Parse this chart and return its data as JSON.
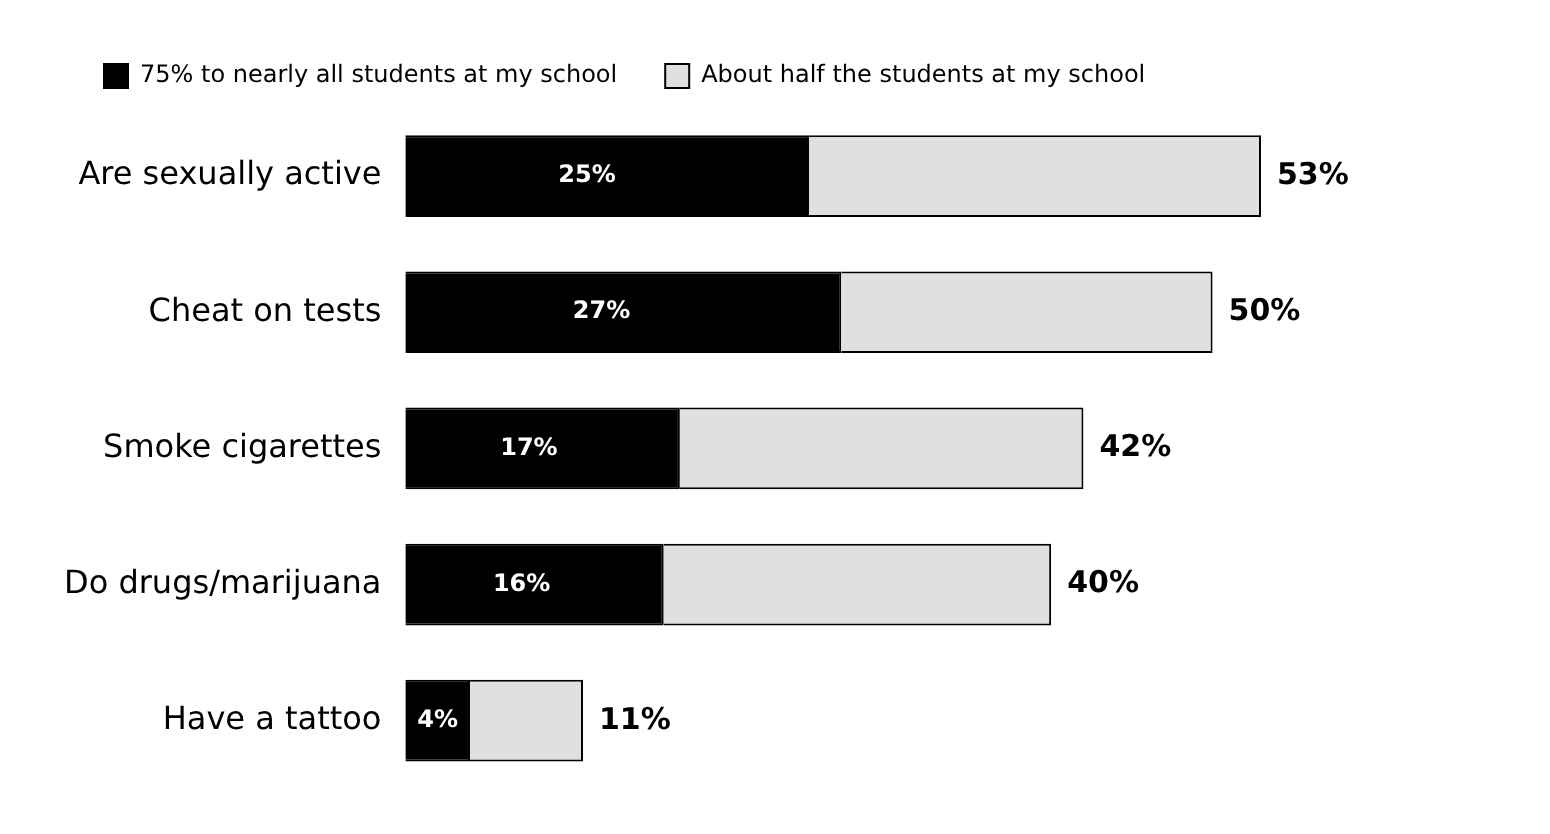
{
  "chart_data": {
    "type": "bar",
    "orientation": "horizontal",
    "stacked": true,
    "legend": "top left",
    "categories": [
      "Are sexually active",
      "Cheat on tests",
      "Smoke cigarettes",
      "Do drugs/marijuana",
      "Have a tattoo"
    ],
    "series": [
      {
        "name": "75% to nearly all students at my school",
        "color": "#000000",
        "values": [
          25,
          27,
          17,
          16,
          4
        ],
        "value_labels": [
          "25%",
          "27%",
          "17%",
          "16%",
          "4%"
        ]
      },
      {
        "name": "About half the students at my school",
        "color": "#e0e0e0",
        "values": [
          28,
          23,
          25,
          24,
          7
        ]
      }
    ],
    "totals": [
      "53%",
      "50%",
      "42%",
      "40%",
      "11%"
    ]
  }
}
